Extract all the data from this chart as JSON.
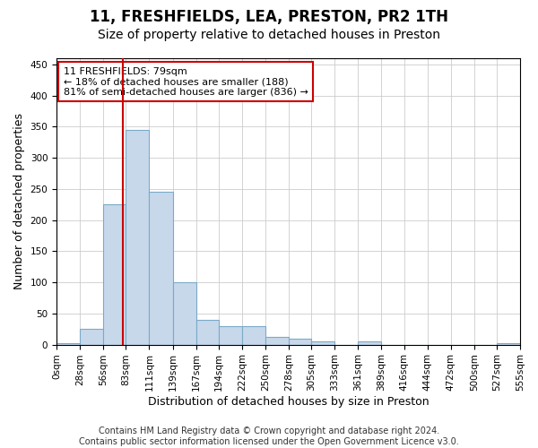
{
  "title": "11, FRESHFIELDS, LEA, PRESTON, PR2 1TH",
  "subtitle": "Size of property relative to detached houses in Preston",
  "xlabel": "Distribution of detached houses by size in Preston",
  "ylabel": "Number of detached properties",
  "footer_line1": "Contains HM Land Registry data © Crown copyright and database right 2024.",
  "footer_line2": "Contains public sector information licensed under the Open Government Licence v3.0.",
  "annotation_title": "11 FRESHFIELDS: 79sqm",
  "annotation_line1": "← 18% of detached houses are smaller (188)",
  "annotation_line2": "81% of semi-detached houses are larger (836) →",
  "property_size": 79,
  "xtick_values": [
    0,
    28,
    56,
    83,
    111,
    139,
    167,
    194,
    222,
    250,
    278,
    305,
    333,
    361,
    389,
    416,
    444,
    472,
    500,
    527,
    555
  ],
  "bar_values": [
    3,
    25,
    225,
    345,
    245,
    100,
    40,
    30,
    30,
    13,
    10,
    5,
    0,
    5,
    0,
    0,
    0,
    0,
    0,
    3
  ],
  "bar_color": "#c8d8eb",
  "bar_edge_color": "#7aaac8",
  "vline_color": "#cc0000",
  "annotation_box_color": "#ffffff",
  "annotation_box_edge": "#cc0000",
  "grid_color": "#cccccc",
  "background_color": "#ffffff",
  "ylim": [
    0,
    460
  ],
  "yticks": [
    0,
    50,
    100,
    150,
    200,
    250,
    300,
    350,
    400,
    450
  ],
  "title_fontsize": 12,
  "subtitle_fontsize": 10,
  "axis_label_fontsize": 9,
  "tick_fontsize": 7.5,
  "footer_fontsize": 7,
  "annotation_fontsize": 8
}
